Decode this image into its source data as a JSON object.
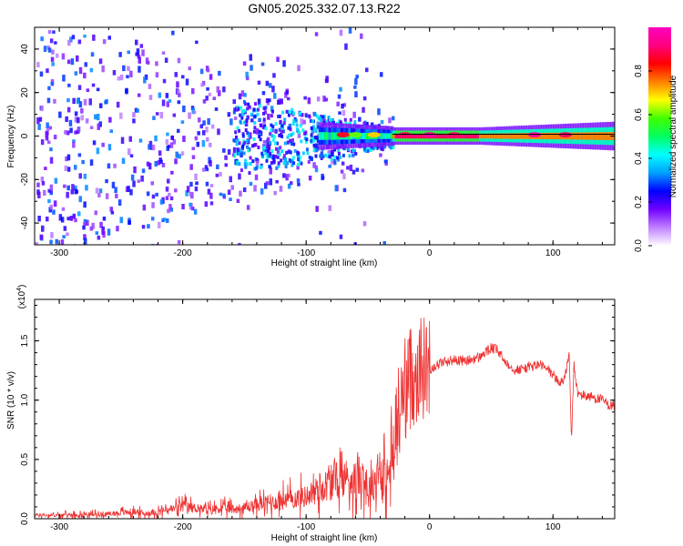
{
  "title": "GN05.2025.332.07.13.R22",
  "chart_data": [
    {
      "type": "heatmap",
      "title": "",
      "xlabel": "Height of straight line (km)",
      "ylabel": "Frequency (Hz)",
      "xlim": [
        -320,
        150
      ],
      "ylim": [
        -50,
        50
      ],
      "xticks": [
        -300,
        -200,
        -100,
        0,
        100
      ],
      "yticks": [
        -40,
        -20,
        0,
        20,
        40
      ],
      "colorbar": {
        "label": "Normalized spectral amplitude",
        "range": [
          0,
          1
        ],
        "ticks": [
          "0.0",
          "0.2",
          "0.4",
          "0.6",
          "0.8"
        ],
        "colors": [
          "#ffffff",
          "#c080ff",
          "#7000ff",
          "#0000ff",
          "#00a0ff",
          "#00ffff",
          "#00ff60",
          "#40ff00",
          "#ffff00",
          "#ff8000",
          "#ff0000",
          "#ff0080",
          "#ff00c0"
        ]
      },
      "features": {
        "carrier_line_freq": 0,
        "noise_region_x": [
          -320,
          -30
        ],
        "strong_band_x": [
          -80,
          150
        ]
      }
    },
    {
      "type": "line",
      "title": "",
      "xlabel": "Height of straight line (km)",
      "ylabel": "SNR (10 * v/v)",
      "ylabel_scale": "(x10",
      "ylabel_scale_exp": "4",
      "ylabel_scale_close": ")",
      "xlim": [
        -320,
        150
      ],
      "ylim": [
        0,
        18500
      ],
      "xticks": [
        -300,
        -200,
        -100,
        0,
        100
      ],
      "yticks": [
        "0.0",
        "0.5",
        "1.0",
        "1.5"
      ],
      "line_color": "#ee3333",
      "series": [
        {
          "x": [
            -320,
            -300,
            -280,
            -260,
            -250,
            -240,
            -230,
            -220,
            -210,
            -200,
            -190,
            -180,
            -170,
            -160,
            -150,
            -140,
            -130,
            -120,
            -110,
            -100,
            -90,
            -80,
            -70,
            -60,
            -55,
            -50,
            -45,
            -40,
            -35,
            -30,
            -25,
            -20,
            -15,
            -10,
            -5,
            0,
            10,
            20,
            30,
            40,
            50,
            55,
            60,
            70,
            80,
            90,
            100,
            105,
            110,
            113,
            115,
            117,
            120,
            125,
            130,
            140,
            145,
            150
          ],
          "values": [
            300,
            300,
            350,
            400,
            500,
            600,
            400,
            600,
            800,
            1000,
            900,
            700,
            900,
            800,
            900,
            1200,
            1300,
            1500,
            1700,
            1900,
            2500,
            3000,
            3500,
            3300,
            4000,
            2500,
            3000,
            4500,
            3000,
            5000,
            9000,
            11000,
            12000,
            12500,
            12800,
            12600,
            13200,
            13400,
            13300,
            13600,
            14400,
            14200,
            13400,
            12500,
            12800,
            13000,
            12200,
            11400,
            12000,
            14000,
            6500,
            13000,
            10500,
            10400,
            10300,
            10000,
            9600,
            9500
          ]
        }
      ]
    }
  ]
}
